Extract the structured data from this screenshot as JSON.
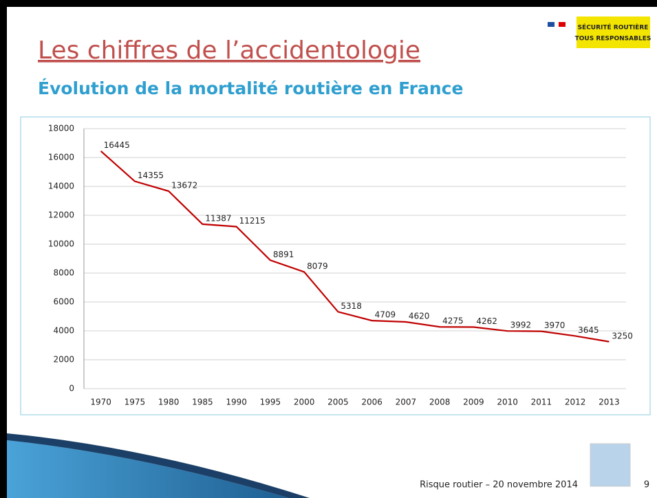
{
  "header": {
    "title": "Les chiffres de l’accidentologie",
    "subtitle": "Évolution de la mortalité routière en France",
    "logo": {
      "line1": "SÉCURITÉ ROUTIÈRE",
      "line2": "TOUS RESPONSABLES"
    }
  },
  "footer": {
    "text": "Risque routier – 20 novembre 2014",
    "page": "9"
  },
  "chart_data": {
    "type": "line",
    "categories": [
      "1970",
      "1975",
      "1980",
      "1985",
      "1990",
      "1995",
      "2000",
      "2005",
      "2006",
      "2007",
      "2008",
      "2009",
      "2010",
      "2011",
      "2012",
      "2013"
    ],
    "values": [
      16445,
      14355,
      13672,
      11387,
      11215,
      8891,
      8079,
      5318,
      4709,
      4620,
      4275,
      4262,
      3992,
      3970,
      3645,
      3250
    ],
    "color": "#c00000",
    "ylim": [
      0,
      18000
    ],
    "yticks": [
      0,
      2000,
      4000,
      6000,
      8000,
      10000,
      12000,
      14000,
      16000,
      18000
    ],
    "grid": true
  }
}
